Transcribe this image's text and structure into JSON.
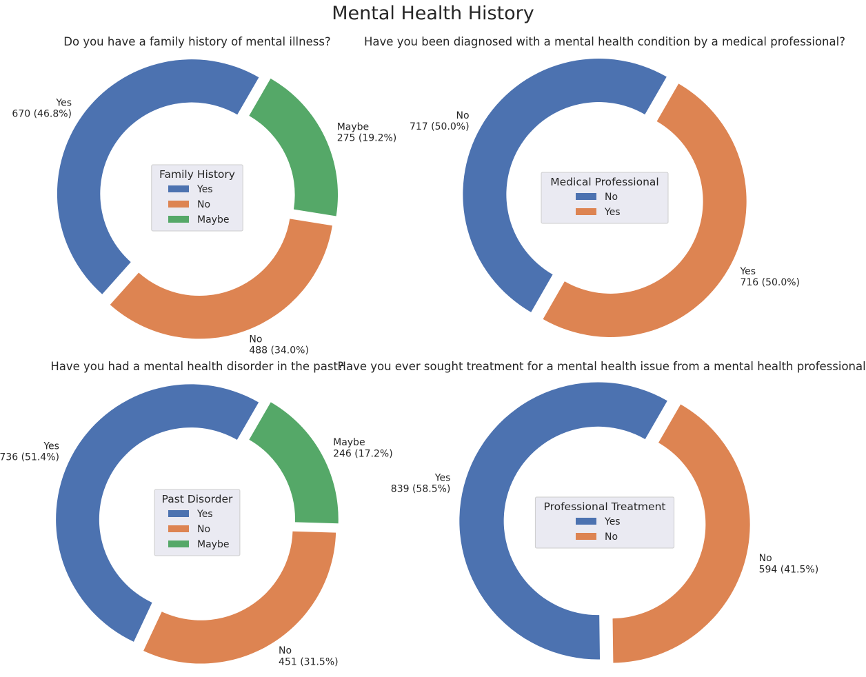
{
  "title": "Mental Health History",
  "colors": {
    "blue": "#4c72b0",
    "orange": "#dd8452",
    "green": "#55a868",
    "legend_bg": "#eaeaf2",
    "text": "#262626"
  },
  "chart_data": [
    {
      "type": "pie",
      "variant": "donut",
      "title": "Do you have a family history of mental illness?",
      "legend_title": "Family History",
      "legend_position": "center",
      "slices": [
        {
          "label": "Yes",
          "value": 670,
          "pct": "46.8%",
          "color": "#4c72b0"
        },
        {
          "label": "No",
          "value": 488,
          "pct": "34.0%",
          "color": "#dd8452"
        },
        {
          "label": "Maybe",
          "value": 275,
          "pct": "19.2%",
          "color": "#55a868"
        }
      ]
    },
    {
      "type": "pie",
      "variant": "donut",
      "title": "Have you been diagnosed with a mental health condition by a medical professional?",
      "legend_title": "Medical Professional",
      "legend_position": "center",
      "slices": [
        {
          "label": "No",
          "value": 717,
          "pct": "50.0%",
          "color": "#4c72b0"
        },
        {
          "label": "Yes",
          "value": 716,
          "pct": "50.0%",
          "color": "#dd8452"
        }
      ]
    },
    {
      "type": "pie",
      "variant": "donut",
      "title": "Have you had a mental health disorder in the past?",
      "legend_title": "Past Disorder",
      "legend_position": "center",
      "slices": [
        {
          "label": "Yes",
          "value": 736,
          "pct": "51.4%",
          "color": "#4c72b0"
        },
        {
          "label": "No",
          "value": 451,
          "pct": "31.5%",
          "color": "#dd8452"
        },
        {
          "label": "Maybe",
          "value": 246,
          "pct": "17.2%",
          "color": "#55a868"
        }
      ]
    },
    {
      "type": "pie",
      "variant": "donut",
      "title": "Have you ever sought treatment for a mental health issue from a mental health professional?",
      "legend_title": "Professional Treatment",
      "legend_position": "center",
      "slices": [
        {
          "label": "Yes",
          "value": 839,
          "pct": "58.5%",
          "color": "#4c72b0"
        },
        {
          "label": "No",
          "value": 594,
          "pct": "41.5%",
          "color": "#dd8452"
        }
      ]
    }
  ]
}
